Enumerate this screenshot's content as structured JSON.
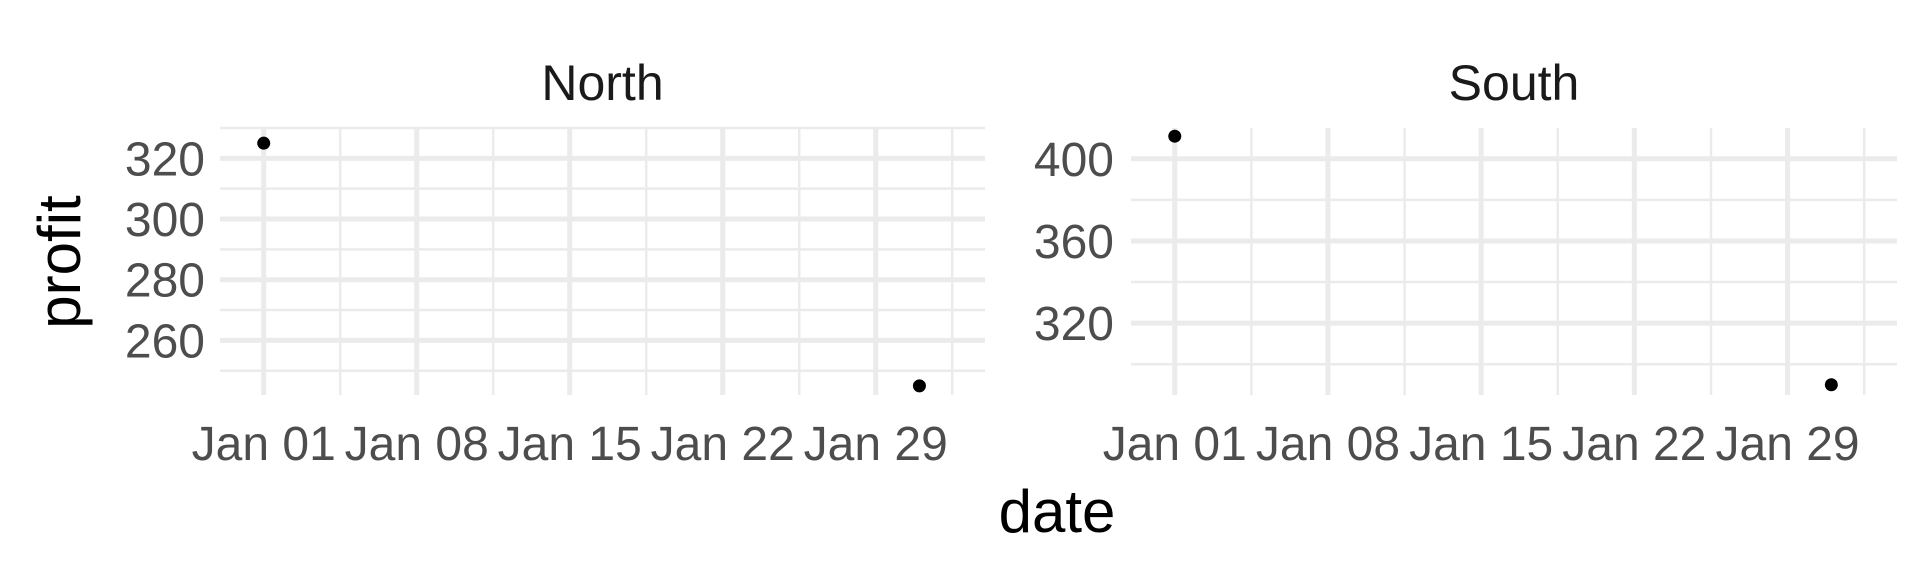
{
  "chart_data": {
    "type": "scatter",
    "facet_by": "region",
    "xlabel": "date",
    "ylabel": "profit",
    "x_ticks": [
      "Jan 01",
      "Jan 08",
      "Jan 15",
      "Jan 22",
      "Jan 29"
    ],
    "x_tick_dates": [
      "2024-01-01",
      "2024-01-08",
      "2024-01-15",
      "2024-01-22",
      "2024-01-29"
    ],
    "xlim": [
      "2023-12-30",
      "2024-02-03"
    ],
    "grid": true,
    "legend": "none",
    "point_color": "#000000",
    "panels": [
      {
        "title": "North",
        "ylim": [
          242,
          330
        ],
        "y_ticks": [
          260,
          280,
          300,
          320
        ],
        "points": [
          {
            "x": "2024-01-01",
            "y": 325
          },
          {
            "x": "2024-01-31",
            "y": 245
          }
        ]
      },
      {
        "title": "South",
        "ylim": [
          285,
          415
        ],
        "y_ticks": [
          320,
          360,
          400
        ],
        "points": [
          {
            "x": "2024-01-01",
            "y": 411
          },
          {
            "x": "2024-01-31",
            "y": 290
          }
        ]
      }
    ]
  }
}
